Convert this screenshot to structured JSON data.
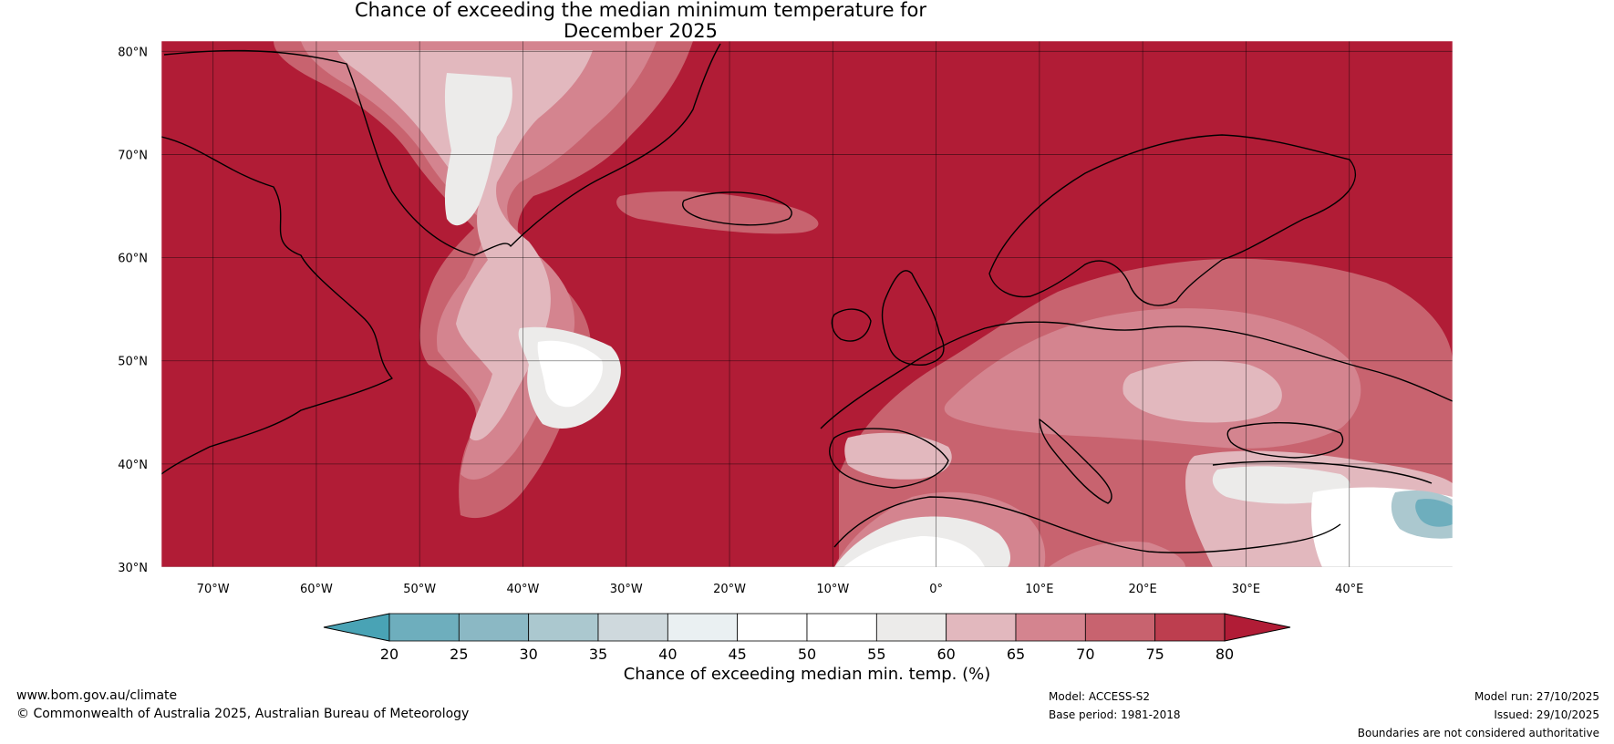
{
  "title": {
    "line1": "Chance of exceeding the median minimum temperature for",
    "line2": "December 2025"
  },
  "map": {
    "latitude_labels": [
      "80°N",
      "70°N",
      "60°N",
      "50°N",
      "40°N",
      "30°N"
    ],
    "longitude_labels": [
      "70°W",
      "60°W",
      "50°W",
      "40°W",
      "30°W",
      "20°W",
      "10°W",
      "0°",
      "10°E",
      "20°E",
      "30°E",
      "40°E"
    ],
    "extent": {
      "lon_min": -75,
      "lon_max": 50,
      "lat_min": 30,
      "lat_max": 81
    },
    "colors": {
      "ocean_high": "#b11c36",
      "coastline": "#000000",
      "borders": "#808080"
    }
  },
  "colorbar": {
    "ticks": [
      "20",
      "25",
      "30",
      "35",
      "40",
      "45",
      "50",
      "55",
      "60",
      "65",
      "70",
      "75",
      "80"
    ],
    "colors": [
      "#49a3b5",
      "#6eaebd",
      "#8bb8c4",
      "#abc8cf",
      "#cfd9dd",
      "#eaf0f2",
      "#ffffff",
      "#ffffff",
      "#ecebea",
      "#e2b8be",
      "#d4848f",
      "#c8636f",
      "#bd3e4f",
      "#b11c36"
    ],
    "label": "Chance of exceeding median min. temp. (%)"
  },
  "footer": {
    "website": "www.bom.gov.au/climate",
    "copyright": "© Commonwealth of Australia 2025, Australian Bureau of Meteorology",
    "model": "Model: ACCESS-S2",
    "base_period": "Base period: 1981-2018",
    "model_run": "Model run: 27/10/2025",
    "issued": "Issued: 29/10/2025",
    "disclaimer": "Boundaries are not considered authoritative"
  }
}
